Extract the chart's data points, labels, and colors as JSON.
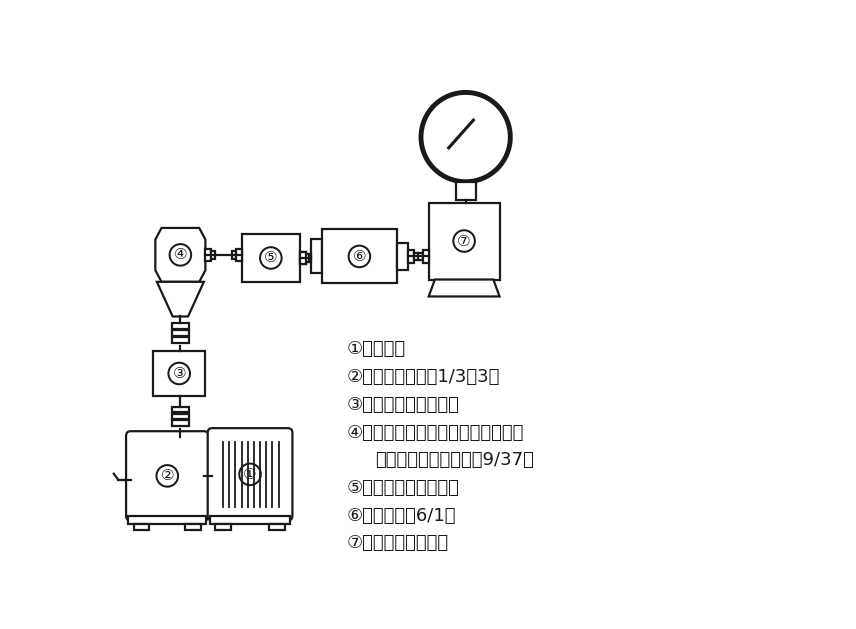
{
  "bg_color": "#ffffff",
  "line_color": "#1a1a1a",
  "legend_lines": [
    [
      "①：モータ",
      false
    ],
    [
      "②：無段変速機（1/3～3）",
      false
    ],
    [
      "③：入力トルク検出器",
      false
    ],
    [
      "④：乗用車用アクスルアッセンブリ",
      false
    ],
    [
      "（ハイポイドギヤ比：9/37）",
      true
    ],
    [
      "⑤：出力トルク検出器",
      false
    ],
    [
      "⑥：増速機（6/1）",
      false
    ],
    [
      "⑦：ダイナモメータ",
      false
    ]
  ]
}
